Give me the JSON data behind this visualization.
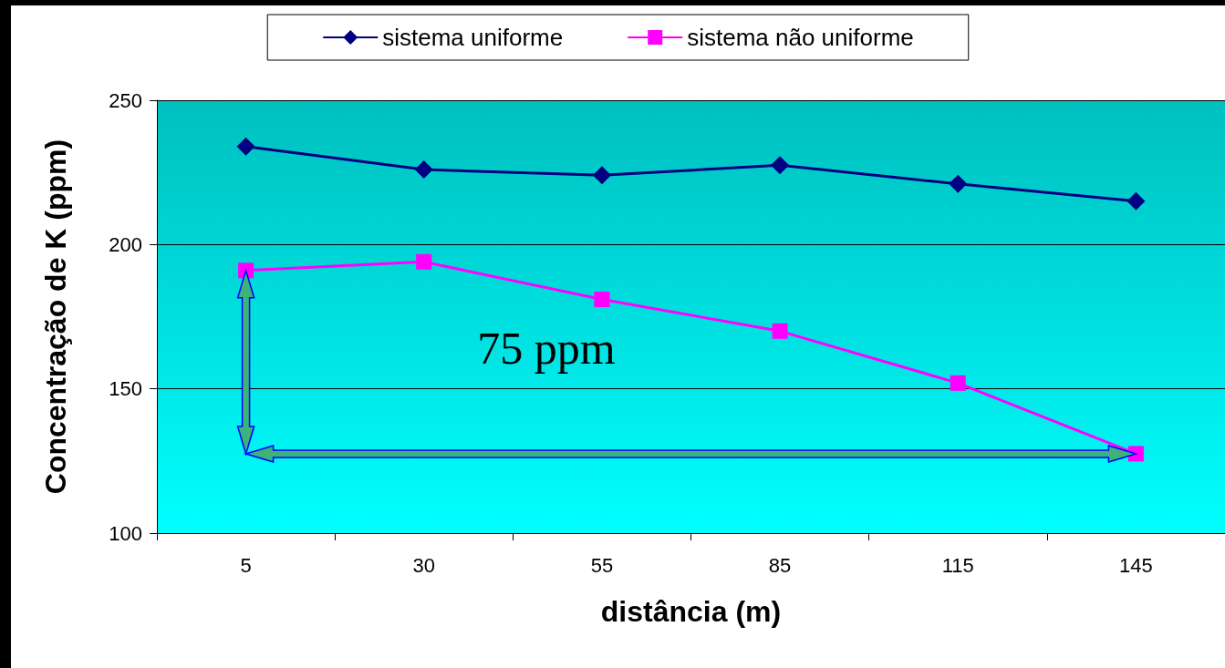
{
  "chart_data": {
    "type": "line",
    "xlabel": "distância (m)",
    "ylabel": "Concentração de K (ppm)",
    "categories": [
      "5",
      "30",
      "55",
      "85",
      "115",
      "145"
    ],
    "series": [
      {
        "name": "sistema uniforme",
        "color": "#000080",
        "marker": "diamond",
        "values": [
          234,
          226,
          224,
          227.5,
          221,
          215
        ]
      },
      {
        "name": "sistema não uniforme",
        "color": "#ff00ff",
        "marker": "square",
        "values": [
          191,
          194,
          181,
          170,
          152,
          127.5
        ]
      }
    ],
    "ylim": [
      100,
      250
    ],
    "yticks": [
      100,
      150,
      200,
      250
    ],
    "grid": "y",
    "legend": "top",
    "annotations": [
      "75 ppm"
    ]
  }
}
